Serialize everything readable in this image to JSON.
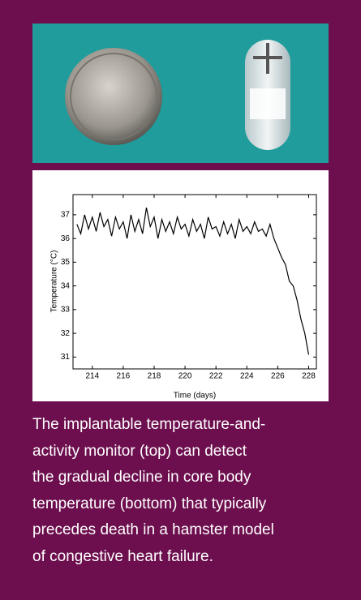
{
  "chart_data": {
    "type": "line",
    "x_label": "Time (days)",
    "y_label": "Temperature (°C)",
    "x": [
      213,
      213.25,
      213.5,
      213.75,
      214,
      214.25,
      214.5,
      214.75,
      215,
      215.25,
      215.5,
      215.75,
      216,
      216.25,
      216.5,
      216.75,
      217,
      217.25,
      217.5,
      217.75,
      218,
      218.25,
      218.5,
      218.75,
      219,
      219.25,
      219.5,
      219.75,
      220,
      220.25,
      220.5,
      220.75,
      221,
      221.25,
      221.5,
      221.75,
      222,
      222.25,
      222.5,
      222.75,
      223,
      223.25,
      223.5,
      223.75,
      224,
      224.25,
      224.5,
      224.75,
      225,
      225.25,
      225.5,
      225.75,
      226,
      226.25,
      226.5,
      226.75,
      227,
      227.25,
      227.5,
      227.75,
      228
    ],
    "series": [
      {
        "color": "#000000",
        "values": [
          36.6,
          36.2,
          37.0,
          36.4,
          36.9,
          36.3,
          37.1,
          36.5,
          36.8,
          36.1,
          36.9,
          36.4,
          36.7,
          36.0,
          37.0,
          36.3,
          36.8,
          36.2,
          37.3,
          36.5,
          36.9,
          36.0,
          36.8,
          36.3,
          36.7,
          36.2,
          36.9,
          36.4,
          36.6,
          36.1,
          36.8,
          36.3,
          36.6,
          36.0,
          36.9,
          36.4,
          36.5,
          36.1,
          36.7,
          36.2,
          36.6,
          36.0,
          36.8,
          36.3,
          36.5,
          36.2,
          36.7,
          36.3,
          36.4,
          36.1,
          36.6,
          36.0,
          35.6,
          35.2,
          34.9,
          34.2,
          34.0,
          33.4,
          32.6,
          32.0,
          31.1
        ]
      }
    ],
    "xlim": [
      212.75,
      228.5
    ],
    "ylim": [
      30.5,
      37.85
    ],
    "xticks": [
      214,
      216,
      218,
      220,
      222,
      224,
      226,
      228
    ],
    "yticks": [
      31,
      32,
      33,
      34,
      35,
      36,
      37
    ]
  },
  "caption": {
    "lines": [
      "The implantable temperature-and-",
      "activity monitor (top) can detect",
      "the gradual decline in core body",
      "temperature (bottom) that typically",
      "precedes death in a hamster model",
      "of congestive heart failure."
    ]
  }
}
